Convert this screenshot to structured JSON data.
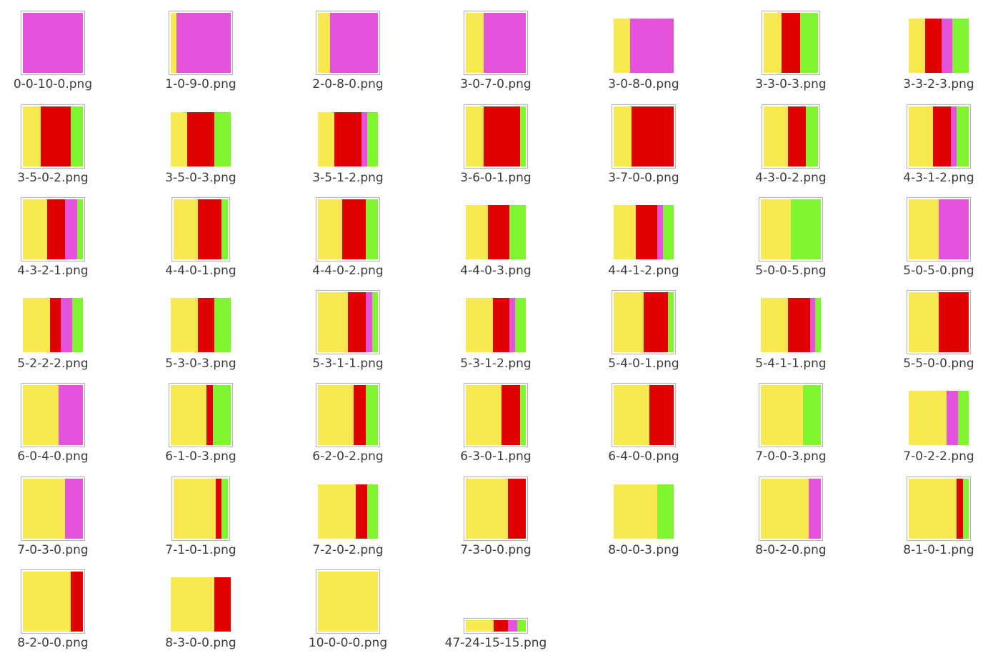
{
  "colors": {
    "yellow": "#f8e950",
    "red": "#e00000",
    "magenta": "#e553dc",
    "green": "#7ff530"
  },
  "files": [
    {
      "name": "0-0-10-0.png",
      "parts": [
        0,
        0,
        10,
        0
      ],
      "framed": true
    },
    {
      "name": "1-0-9-0.png",
      "parts": [
        1,
        0,
        9,
        0
      ],
      "framed": true
    },
    {
      "name": "2-0-8-0.png",
      "parts": [
        2,
        0,
        8,
        0
      ],
      "framed": true
    },
    {
      "name": "3-0-7-0.png",
      "parts": [
        3,
        0,
        7,
        0
      ],
      "framed": true
    },
    {
      "name": "3-0-8-0.png",
      "parts": [
        3,
        0,
        8,
        0
      ],
      "framed": false
    },
    {
      "name": "3-3-0-3.png",
      "parts": [
        3,
        3,
        0,
        3
      ],
      "framed": true
    },
    {
      "name": "3-3-2-3.png",
      "parts": [
        3,
        3,
        2,
        3
      ],
      "framed": false
    },
    {
      "name": "3-5-0-2.png",
      "parts": [
        3,
        5,
        0,
        2
      ],
      "framed": true
    },
    {
      "name": "3-5-0-3.png",
      "parts": [
        3,
        5,
        0,
        3
      ],
      "framed": false
    },
    {
      "name": "3-5-1-2.png",
      "parts": [
        3,
        5,
        1,
        2
      ],
      "framed": false
    },
    {
      "name": "3-6-0-1.png",
      "parts": [
        3,
        6,
        0,
        1
      ],
      "framed": true
    },
    {
      "name": "3-7-0-0.png",
      "parts": [
        3,
        7,
        0,
        0
      ],
      "framed": true
    },
    {
      "name": "4-3-0-2.png",
      "parts": [
        4,
        3,
        0,
        2
      ],
      "framed": true
    },
    {
      "name": "4-3-1-2.png",
      "parts": [
        4,
        3,
        1,
        2
      ],
      "framed": true
    },
    {
      "name": "4-3-2-1.png",
      "parts": [
        4,
        3,
        2,
        1
      ],
      "framed": true
    },
    {
      "name": "4-4-0-1.png",
      "parts": [
        4,
        4,
        0,
        1
      ],
      "framed": true
    },
    {
      "name": "4-4-0-2.png",
      "parts": [
        4,
        4,
        0,
        2
      ],
      "framed": true
    },
    {
      "name": "4-4-0-3.png",
      "parts": [
        4,
        4,
        0,
        3
      ],
      "framed": false
    },
    {
      "name": "4-4-1-2.png",
      "parts": [
        4,
        4,
        1,
        2
      ],
      "framed": false
    },
    {
      "name": "5-0-0-5.png",
      "parts": [
        5,
        0,
        0,
        5
      ],
      "framed": true
    },
    {
      "name": "5-0-5-0.png",
      "parts": [
        5,
        0,
        5,
        0
      ],
      "framed": true
    },
    {
      "name": "5-2-2-2.png",
      "parts": [
        5,
        2,
        2,
        2
      ],
      "framed": false
    },
    {
      "name": "5-3-0-3.png",
      "parts": [
        5,
        3,
        0,
        3
      ],
      "framed": false
    },
    {
      "name": "5-3-1-1.png",
      "parts": [
        5,
        3,
        1,
        1
      ],
      "framed": true
    },
    {
      "name": "5-3-1-2.png",
      "parts": [
        5,
        3,
        1,
        2
      ],
      "framed": false
    },
    {
      "name": "5-4-0-1.png",
      "parts": [
        5,
        4,
        0,
        1
      ],
      "framed": true
    },
    {
      "name": "5-4-1-1.png",
      "parts": [
        5,
        4,
        1,
        1
      ],
      "framed": false
    },
    {
      "name": "5-5-0-0.png",
      "parts": [
        5,
        5,
        0,
        0
      ],
      "framed": true
    },
    {
      "name": "6-0-4-0.png",
      "parts": [
        6,
        0,
        4,
        0
      ],
      "framed": true
    },
    {
      "name": "6-1-0-3.png",
      "parts": [
        6,
        1,
        0,
        3
      ],
      "framed": true
    },
    {
      "name": "6-2-0-2.png",
      "parts": [
        6,
        2,
        0,
        2
      ],
      "framed": true
    },
    {
      "name": "6-3-0-1.png",
      "parts": [
        6,
        3,
        0,
        1
      ],
      "framed": true
    },
    {
      "name": "6-4-0-0.png",
      "parts": [
        6,
        4,
        0,
        0
      ],
      "framed": true
    },
    {
      "name": "7-0-0-3.png",
      "parts": [
        7,
        0,
        0,
        3
      ],
      "framed": true
    },
    {
      "name": "7-0-2-2.png",
      "parts": [
        7,
        0,
        2,
        2
      ],
      "framed": false
    },
    {
      "name": "7-0-3-0.png",
      "parts": [
        7,
        0,
        3,
        0
      ],
      "framed": true
    },
    {
      "name": "7-1-0-1.png",
      "parts": [
        7,
        1,
        0,
        1
      ],
      "framed": true
    },
    {
      "name": "7-2-0-2.png",
      "parts": [
        7,
        2,
        0,
        2
      ],
      "framed": false
    },
    {
      "name": "7-3-0-0.png",
      "parts": [
        7,
        3,
        0,
        0
      ],
      "framed": true
    },
    {
      "name": "8-0-0-3.png",
      "parts": [
        8,
        0,
        0,
        3
      ],
      "framed": false
    },
    {
      "name": "8-0-2-0.png",
      "parts": [
        8,
        0,
        2,
        0
      ],
      "framed": true
    },
    {
      "name": "8-1-0-1.png",
      "parts": [
        8,
        1,
        0,
        1
      ],
      "framed": true
    },
    {
      "name": "8-2-0-0.png",
      "parts": [
        8,
        2,
        0,
        0
      ],
      "framed": true
    },
    {
      "name": "8-3-0-0.png",
      "parts": [
        8,
        3,
        0,
        0
      ],
      "framed": false
    },
    {
      "name": "10-0-0-0.png",
      "parts": [
        10,
        0,
        0,
        0
      ],
      "framed": true
    },
    {
      "name": "47-24-15-15.png",
      "parts": [
        47,
        24,
        15,
        15
      ],
      "framed": true
    }
  ]
}
